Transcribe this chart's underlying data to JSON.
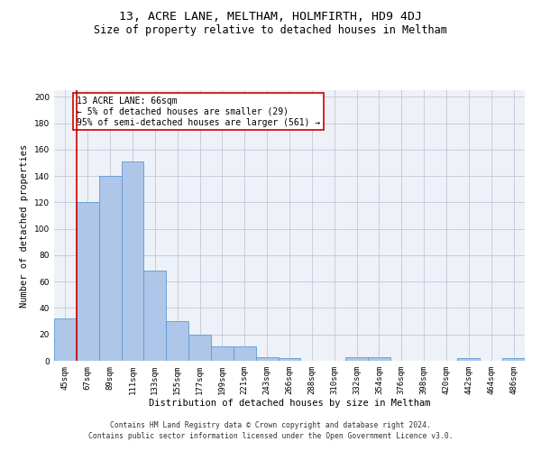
{
  "title": "13, ACRE LANE, MELTHAM, HOLMFIRTH, HD9 4DJ",
  "subtitle": "Size of property relative to detached houses in Meltham",
  "xlabel": "Distribution of detached houses by size in Meltham",
  "ylabel": "Number of detached properties",
  "footnote1": "Contains HM Land Registry data © Crown copyright and database right 2024.",
  "footnote2": "Contains public sector information licensed under the Open Government Licence v3.0.",
  "bin_labels": [
    "45sqm",
    "67sqm",
    "89sqm",
    "111sqm",
    "133sqm",
    "155sqm",
    "177sqm",
    "199sqm",
    "221sqm",
    "243sqm",
    "266sqm",
    "288sqm",
    "310sqm",
    "332sqm",
    "354sqm",
    "376sqm",
    "398sqm",
    "420sqm",
    "442sqm",
    "464sqm",
    "486sqm"
  ],
  "bar_values": [
    32,
    120,
    140,
    151,
    68,
    30,
    20,
    11,
    11,
    3,
    2,
    0,
    0,
    3,
    3,
    0,
    0,
    0,
    2,
    0,
    2
  ],
  "bar_color": "#aec6e8",
  "bar_edge_color": "#5b9bd5",
  "highlight_line_color": "#cc0000",
  "annotation_box_text": "13 ACRE LANE: 66sqm\n← 5% of detached houses are smaller (29)\n95% of semi-detached houses are larger (561) →",
  "annotation_box_color": "#cc0000",
  "ylim": [
    0,
    205
  ],
  "yticks": [
    0,
    20,
    40,
    60,
    80,
    100,
    120,
    140,
    160,
    180,
    200
  ],
  "bg_color": "#eef2f8",
  "title_fontsize": 9.5,
  "subtitle_fontsize": 8.5,
  "axis_label_fontsize": 7.5,
  "tick_fontsize": 6.5,
  "footnote_fontsize": 5.8,
  "annotation_fontsize": 7.0
}
